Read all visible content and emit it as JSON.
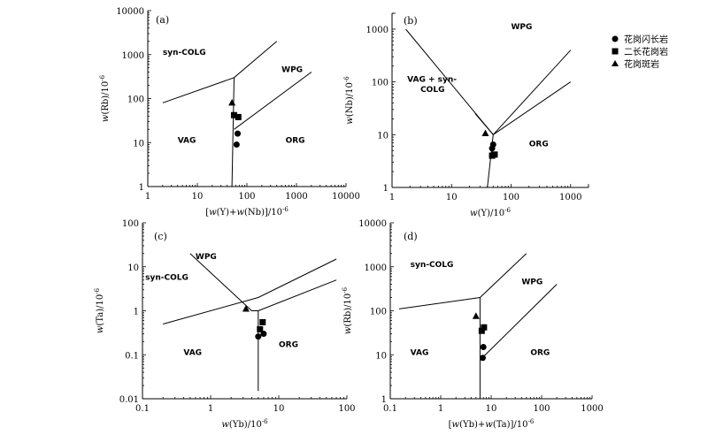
{
  "legend": {
    "position": "top-right",
    "items": [
      {
        "label": "花岗闪长岩",
        "marker": "circle"
      },
      {
        "label": "二长花岗岩",
        "marker": "square"
      },
      {
        "label": "花岗斑岩",
        "marker": "triangle"
      }
    ]
  },
  "chart_data": [
    {
      "type": "scatter",
      "panel": "(a)",
      "xscale": "log",
      "yscale": "log",
      "xlim": [
        1,
        10000
      ],
      "ylim": [
        1,
        10000
      ],
      "xticks": [
        1,
        10,
        100,
        1000,
        10000
      ],
      "yticks": [
        1,
        10,
        100,
        1000,
        10000
      ],
      "xlabel_parts": [
        [
          "[",
          "n"
        ],
        [
          "w",
          "i"
        ],
        [
          "(Y)+",
          "n"
        ],
        [
          "w",
          "i"
        ],
        [
          "(Nb)]/10",
          "n"
        ],
        [
          "-6",
          "s"
        ]
      ],
      "ylabel_parts": [
        [
          "w",
          "i"
        ],
        [
          "(Rb)/10",
          "n"
        ],
        [
          "-6",
          "s"
        ]
      ],
      "boundaries": [
        [
          [
            2,
            80
          ],
          [
            55,
            300
          ],
          [
            400,
            2000
          ]
        ],
        [
          [
            55,
            300
          ],
          [
            50,
            1
          ]
        ],
        [
          [
            55,
            20
          ],
          [
            2000,
            400
          ]
        ]
      ],
      "fields": [
        {
          "text": "syn-COLG",
          "x": 2,
          "y": 1000
        },
        {
          "text": "WPG",
          "x": 500,
          "y": 400
        },
        {
          "text": "VAG",
          "x": 4,
          "y": 10
        },
        {
          "text": "ORG",
          "x": 600,
          "y": 10
        }
      ],
      "series": [
        {
          "marker": "circle",
          "points": [
            [
              65,
              16
            ],
            [
              62,
              9
            ]
          ]
        },
        {
          "marker": "square",
          "points": [
            [
              55,
              42
            ],
            [
              67,
              38
            ]
          ]
        },
        {
          "marker": "triangle",
          "points": [
            [
              50,
              80
            ]
          ]
        }
      ]
    },
    {
      "type": "scatter",
      "panel": "(b)",
      "xscale": "log",
      "yscale": "log",
      "xlim": [
        1,
        2000
      ],
      "ylim": [
        1,
        2000
      ],
      "xticks": [
        1,
        10,
        100,
        1000
      ],
      "yticks": [
        1,
        10,
        100,
        1000
      ],
      "xlabel_parts": [
        [
          "w",
          "i"
        ],
        [
          "(Y)/10",
          "n"
        ],
        [
          "-6",
          "s"
        ]
      ],
      "ylabel_parts": [
        [
          "w",
          "i"
        ],
        [
          "(Nb)/10",
          "n"
        ],
        [
          "-6",
          "s"
        ]
      ],
      "boundaries": [
        [
          [
            1.7,
            1000
          ],
          [
            50,
            10
          ],
          [
            1000,
            400
          ]
        ],
        [
          [
            25,
            25
          ],
          [
            50,
            10
          ]
        ],
        [
          [
            50,
            10
          ],
          [
            40,
            1
          ]
        ],
        [
          [
            50,
            10
          ],
          [
            1000,
            100
          ]
        ]
      ],
      "fields": [
        {
          "text": "WPG",
          "x": 100,
          "y": 1000
        },
        {
          "text": "VAG + syn-",
          "x": 1.8,
          "y": 100
        },
        {
          "text": "COLG",
          "x": 3,
          "y": 65
        },
        {
          "text": "ORG",
          "x": 200,
          "y": 6
        }
      ],
      "series": [
        {
          "marker": "circle",
          "points": [
            [
              50,
              6.5
            ],
            [
              48,
              5.5
            ]
          ]
        },
        {
          "marker": "square",
          "points": [
            [
              48,
              4
            ],
            [
              53,
              4.2
            ]
          ]
        },
        {
          "marker": "triangle",
          "points": [
            [
              37,
              10.5
            ]
          ]
        }
      ]
    },
    {
      "type": "scatter",
      "panel": "(c)",
      "xscale": "log",
      "yscale": "log",
      "xlim": [
        0.1,
        100
      ],
      "ylim": [
        0.01,
        100
      ],
      "xticks": [
        0.1,
        1,
        10,
        100
      ],
      "yticks": [
        0.01,
        0.1,
        1,
        10,
        100
      ],
      "xlabel_parts": [
        [
          "w",
          "i"
        ],
        [
          "(Yb)/10",
          "n"
        ],
        [
          "-6",
          "s"
        ]
      ],
      "ylabel_parts": [
        [
          "w",
          "i"
        ],
        [
          "(Ta)/10",
          "n"
        ],
        [
          "-6",
          "s"
        ]
      ],
      "boundaries": [
        [
          [
            0.2,
            0.5
          ],
          [
            5,
            2
          ],
          [
            70,
            15
          ]
        ],
        [
          [
            0.5,
            20
          ],
          [
            4,
            1
          ],
          [
            5,
            1
          ]
        ],
        [
          [
            5,
            1
          ],
          [
            5,
            0.015
          ]
        ],
        [
          [
            5,
            1
          ],
          [
            70,
            5
          ]
        ]
      ],
      "fields": [
        {
          "text": "WPG",
          "x": 0.6,
          "y": 15
        },
        {
          "text": "syn-COLG",
          "x": 0.11,
          "y": 5
        },
        {
          "text": "VAG",
          "x": 0.4,
          "y": 0.1
        },
        {
          "text": "ORG",
          "x": 10,
          "y": 0.15
        }
      ],
      "series": [
        {
          "marker": "circle",
          "points": [
            [
              5,
              0.26
            ],
            [
              6,
              0.3
            ]
          ]
        },
        {
          "marker": "square",
          "points": [
            [
              5.3,
              0.38
            ],
            [
              5.8,
              0.55
            ]
          ]
        },
        {
          "marker": "triangle",
          "points": [
            [
              3.3,
              1.1
            ]
          ]
        }
      ]
    },
    {
      "type": "scatter",
      "panel": "(d)",
      "xscale": "log",
      "yscale": "log",
      "xlim": [
        0.1,
        1000
      ],
      "ylim": [
        1,
        10000
      ],
      "xticks": [
        0.1,
        1,
        10,
        100,
        1000
      ],
      "yticks": [
        1,
        10,
        100,
        1000,
        10000
      ],
      "xlabel_parts": [
        [
          "[",
          "n"
        ],
        [
          "w",
          "i"
        ],
        [
          "(Yb)+",
          "n"
        ],
        [
          "w",
          "i"
        ],
        [
          "(Ta)]/10",
          "n"
        ],
        [
          "-6",
          "s"
        ]
      ],
      "ylabel_parts": [
        [
          "w",
          "i"
        ],
        [
          "(Rb)/10",
          "n"
        ],
        [
          "-6",
          "s"
        ]
      ],
      "boundaries": [
        [
          [
            0.15,
            110
          ],
          [
            6,
            200
          ],
          [
            50,
            2000
          ]
        ],
        [
          [
            6,
            200
          ],
          [
            6,
            1
          ]
        ],
        [
          [
            7,
            9
          ],
          [
            200,
            400
          ]
        ]
      ],
      "fields": [
        {
          "text": "syn-COLG",
          "x": 0.25,
          "y": 1000
        },
        {
          "text": "WPG",
          "x": 40,
          "y": 400
        },
        {
          "text": "VAG",
          "x": 0.25,
          "y": 10
        },
        {
          "text": "ORG",
          "x": 60,
          "y": 10
        }
      ],
      "series": [
        {
          "marker": "circle",
          "points": [
            [
              7,
              15
            ],
            [
              6.8,
              8.5
            ]
          ]
        },
        {
          "marker": "square",
          "points": [
            [
              6.5,
              35
            ],
            [
              7.2,
              42
            ]
          ]
        },
        {
          "marker": "triangle",
          "points": [
            [
              5,
              75
            ]
          ]
        }
      ]
    }
  ]
}
